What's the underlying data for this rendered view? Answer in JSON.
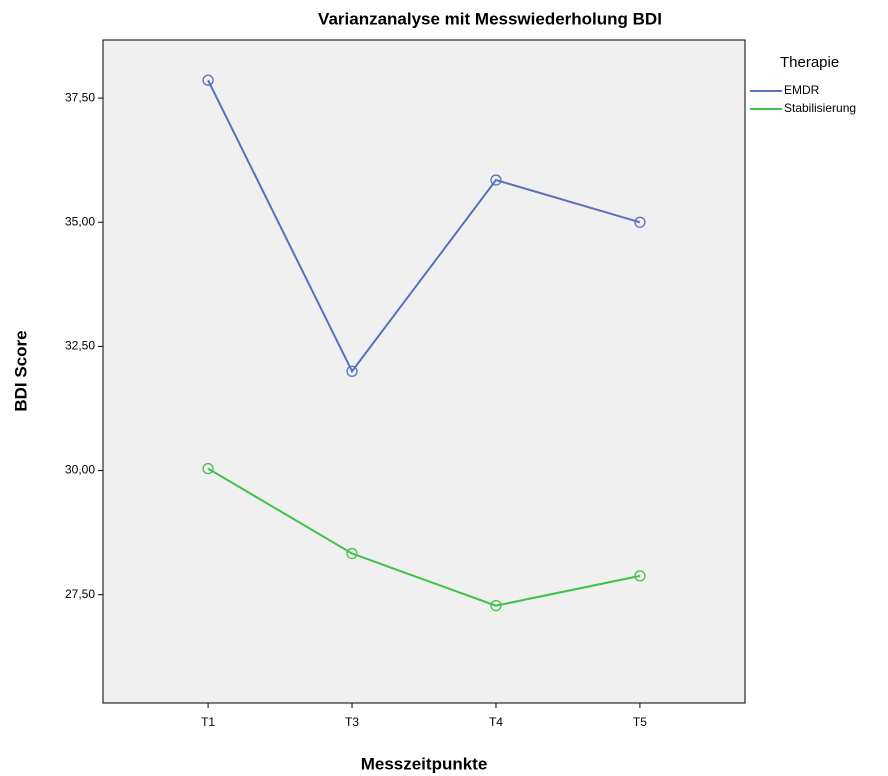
{
  "chart_data": {
    "type": "line",
    "title": "Varianzanalyse mit Messwiederholung BDI",
    "x_label": "Messzeitpunkte",
    "y_label": "BDI Score",
    "legend_title": "Therapie",
    "categories": [
      "T1",
      "T3",
      "T4",
      "T5"
    ],
    "series": [
      {
        "name": "EMDR",
        "color": "#5a6fbf",
        "values": [
          37.86,
          32.0,
          35.85,
          35.0
        ]
      },
      {
        "name": "Stabilisierung",
        "color": "#3fc24a",
        "values": [
          30.04,
          28.33,
          27.28,
          27.88
        ]
      }
    ],
    "ylim": [
      25.32,
      38.67
    ],
    "yticks": [
      {
        "value": 27.5,
        "label": "27,50"
      },
      {
        "value": 30,
        "label": "30,00"
      },
      {
        "value": 32.5,
        "label": "32,50"
      },
      {
        "value": 35,
        "label": "35,00"
      },
      {
        "value": 37.5,
        "label": "37,50"
      }
    ],
    "legend": "right"
  }
}
